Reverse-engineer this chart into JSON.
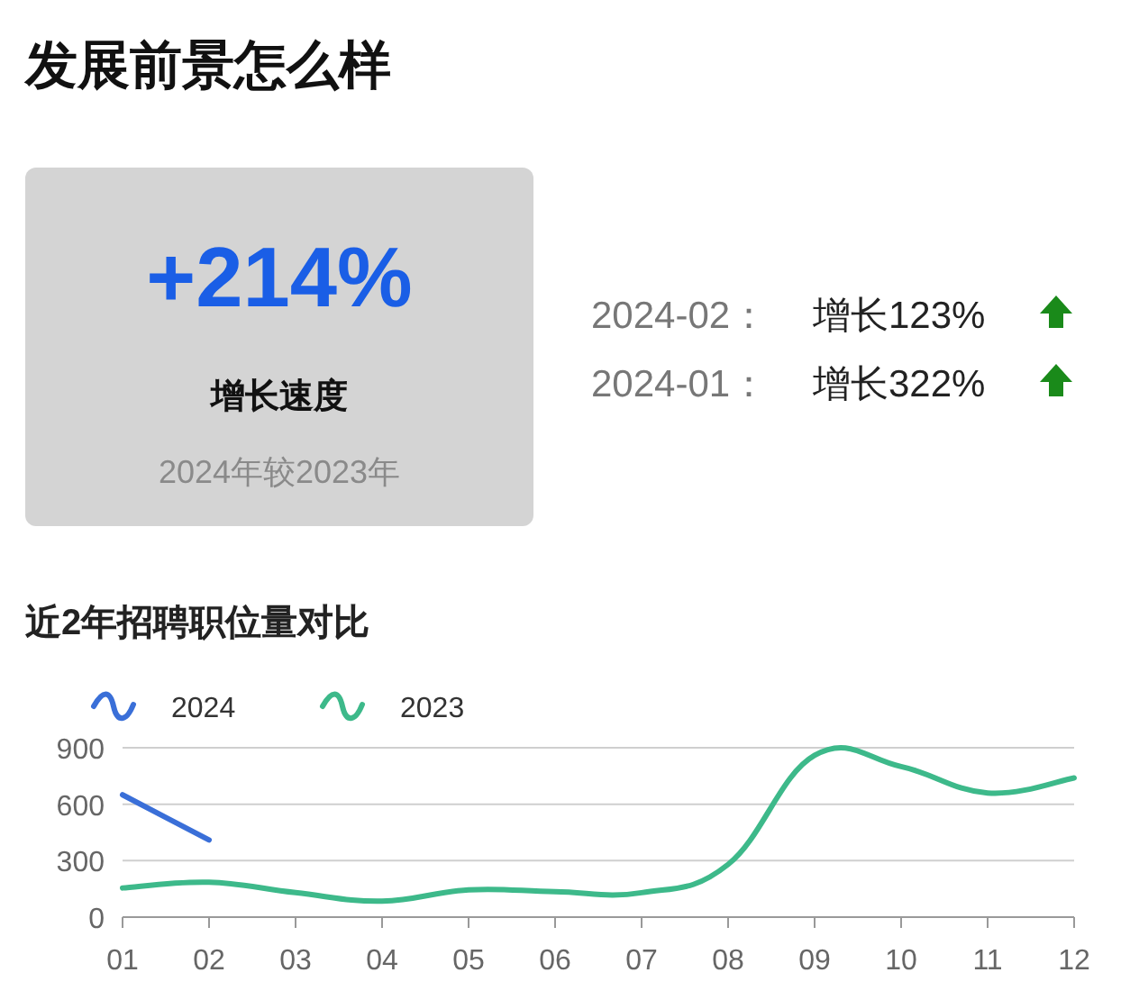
{
  "chart_data": [
    {
      "type": "other",
      "title": "发展前景怎么样",
      "annotations": [
        "+214%",
        "增长速度",
        "2024年较2023年",
        "2024-02：",
        "增长123%",
        "2024-01：",
        "增长322%"
      ]
    },
    {
      "type": "line",
      "title": "近2年招聘职位量对比",
      "categories": [
        "01",
        "02",
        "03",
        "04",
        "05",
        "06",
        "07",
        "08",
        "09",
        "10",
        "11",
        "12"
      ],
      "series": [
        {
          "name": "2024",
          "color": "#3a6fd8",
          "values": [
            650,
            410,
            null,
            null,
            null,
            null,
            null,
            null,
            null,
            null,
            null,
            null
          ]
        },
        {
          "name": "2023",
          "color": "#3db98a",
          "values": [
            155,
            185,
            130,
            85,
            145,
            135,
            130,
            280,
            860,
            800,
            660,
            740
          ]
        }
      ],
      "ylim": [
        0,
        900
      ],
      "yticks": [
        0,
        300,
        600,
        900
      ],
      "grid": "y",
      "legend": "top left",
      "marker": "none",
      "line_style": "solid"
    }
  ]
}
